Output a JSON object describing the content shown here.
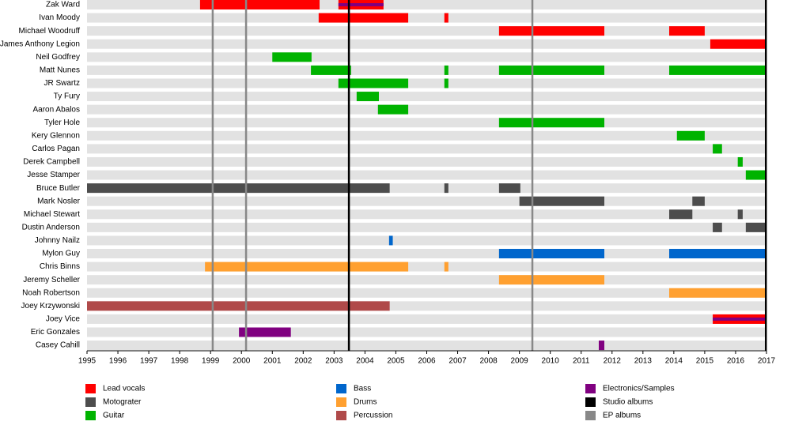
{
  "chart_data": {
    "type": "timeline",
    "categories": [
      "Zak Ward",
      "Ivan Moody",
      "Michael Woodruff",
      "James Anthony Legion",
      "Neil Godfrey",
      "Matt Nunes",
      "JR Swartz",
      "Ty Fury",
      "Aaron Abalos",
      "Tyler Hole",
      "Kery Glennon",
      "Carlos Pagan",
      "Derek Campbell",
      "Jesse Stamper",
      "Bruce Butler",
      "Mark Nosler",
      "Michael Stewart",
      "Dustin Anderson",
      "Johnny Nailz",
      "Mylon Guy",
      "Chris Binns",
      "Jeremy Scheller",
      "Noah Robertson",
      "Joey Krzywonski",
      "Joey Vice",
      "Eric Gonzales",
      "Casey Cahill"
    ],
    "xlim": [
      1995,
      2017
    ],
    "xticks": [
      1995,
      1996,
      1997,
      1998,
      1999,
      2000,
      2001,
      2002,
      2003,
      2004,
      2005,
      2006,
      2007,
      2008,
      2009,
      2010,
      2011,
      2012,
      2013,
      2014,
      2015,
      2016,
      2017
    ],
    "series": [
      {
        "name": "Lead vocals",
        "color": "#ff0000",
        "values": [
          [
            [
              1998.66,
              2002.53
            ],
            [
              2003.14,
              2004.6
            ]
          ],
          [
            [
              2002.5,
              2005.4
            ],
            [
              2006.57,
              2006.7
            ]
          ],
          [
            [
              2008.34,
              2011.75
            ],
            [
              2013.85,
              2015.0
            ]
          ],
          [
            [
              2015.18,
              2017
            ]
          ],
          [],
          [],
          [],
          [],
          [],
          [],
          [],
          [],
          [],
          [],
          [],
          [],
          [],
          [],
          [],
          [],
          [],
          [],
          [],
          [],
          [
            [
              2015.26,
              2017
            ]
          ],
          [],
          []
        ]
      },
      {
        "name": "Motograter",
        "color": "#4d4d4d",
        "values": [
          [],
          [],
          [],
          [],
          [],
          [],
          [],
          [],
          [],
          [],
          [],
          [],
          [],
          [],
          [
            [
              1995,
              2004.8
            ],
            [
              2006.57,
              2006.7
            ],
            [
              2008.34,
              2009.03
            ]
          ],
          [
            [
              2009.0,
              2011.75
            ],
            [
              2014.6,
              2015.0
            ]
          ],
          [
            [
              2013.85,
              2014.6
            ],
            [
              2016.07,
              2016.23
            ]
          ],
          [
            [
              2015.26,
              2015.56
            ],
            [
              2016.33,
              2017
            ]
          ],
          [],
          [],
          [],
          [],
          [],
          [],
          [],
          [],
          []
        ]
      },
      {
        "name": "Guitar",
        "color": "#00b300",
        "values": [
          [],
          [],
          [],
          [],
          [
            [
              2001.0,
              2002.27
            ]
          ],
          [
            [
              2002.25,
              2003.55
            ],
            [
              2006.57,
              2006.7
            ],
            [
              2008.34,
              2011.75
            ],
            [
              2013.85,
              2017
            ]
          ],
          [
            [
              2003.14,
              2005.4
            ],
            [
              2006.57,
              2006.7
            ]
          ],
          [
            [
              2003.73,
              2004.45
            ]
          ],
          [
            [
              2004.42,
              2005.4
            ]
          ],
          [
            [
              2008.34,
              2011.75
            ]
          ],
          [
            [
              2014.1,
              2015.0
            ]
          ],
          [
            [
              2015.26,
              2015.56
            ]
          ],
          [
            [
              2016.07,
              2016.23
            ]
          ],
          [
            [
              2016.33,
              2017
            ]
          ],
          [],
          [],
          [],
          [],
          [],
          [],
          [],
          [],
          [],
          [],
          [],
          [],
          []
        ]
      },
      {
        "name": "Bass",
        "color": "#0066cc",
        "values": [
          [],
          [],
          [],
          [],
          [],
          [],
          [],
          [],
          [],
          [],
          [],
          [],
          [],
          [],
          [],
          [],
          [],
          [],
          [
            [
              2004.78,
              2004.9
            ]
          ],
          [
            [
              2008.34,
              2011.75
            ],
            [
              2013.85,
              2017
            ]
          ],
          [],
          [],
          [],
          [],
          [],
          [],
          []
        ]
      },
      {
        "name": "Drums",
        "color": "#ffa030",
        "values": [
          [],
          [],
          [],
          [],
          [],
          [],
          [],
          [],
          [],
          [],
          [],
          [],
          [],
          [],
          [],
          [],
          [],
          [],
          [],
          [],
          [
            [
              1998.82,
              2005.4
            ],
            [
              2006.57,
              2006.7
            ]
          ],
          [
            [
              2008.34,
              2011.75
            ]
          ],
          [
            [
              2013.85,
              2017
            ]
          ],
          [],
          [],
          [],
          []
        ]
      },
      {
        "name": "Percussion",
        "color": "#b04a4a",
        "values": [
          [],
          [],
          [],
          [],
          [],
          [],
          [],
          [],
          [],
          [],
          [],
          [],
          [],
          [],
          [],
          [],
          [],
          [],
          [],
          [],
          [],
          [],
          [],
          [
            [
              1995,
              2004.8
            ]
          ],
          [],
          [],
          []
        ]
      },
      {
        "name": "Electronics/Samples",
        "color": "#800080",
        "values": [
          [
            [
              2003.14,
              2004.6
            ]
          ],
          [],
          [],
          [],
          [],
          [],
          [],
          [],
          [],
          [],
          [],
          [],
          [],
          [],
          [],
          [],
          [],
          [],
          [],
          [],
          [],
          [],
          [],
          [],
          [
            [
              2015.26,
              2017
            ]
          ],
          [
            [
              1999.92,
              2001.6
            ]
          ],
          [
            [
              2011.57,
              2011.75
            ]
          ]
        ]
      }
    ],
    "markers": [
      {
        "name": "Studio albums",
        "color": "#000000",
        "x": [
          2003.48,
          2016.98
        ]
      },
      {
        "name": "EP albums",
        "color": "#888888",
        "x": [
          1999.07,
          2000.15,
          2009.42
        ]
      }
    ]
  }
}
